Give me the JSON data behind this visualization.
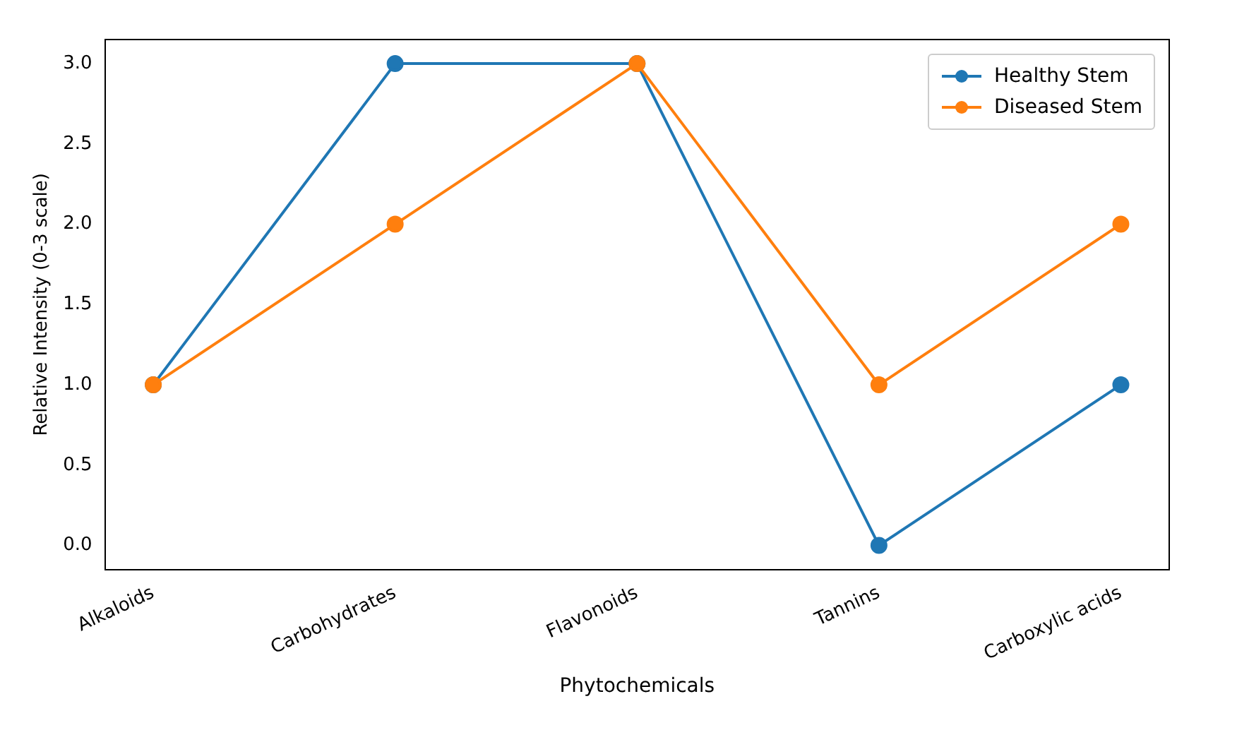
{
  "chart_data": {
    "type": "line",
    "xlabel": "Phytochemicals",
    "ylabel": "Relative Intensity (0-3 scale)",
    "categories": [
      "Alkaloids",
      "Carbohydrates",
      "Flavonoids",
      "Tannins",
      "Carboxylic acids"
    ],
    "series": [
      {
        "name": "Healthy Stem",
        "color": "#1f77b4",
        "values": [
          1,
          3,
          3,
          0,
          1
        ]
      },
      {
        "name": "Diseased Stem",
        "color": "#ff7f0e",
        "values": [
          1,
          2,
          3,
          1,
          2
        ]
      }
    ],
    "ylim": [
      -0.15,
      3.15
    ],
    "yticks": [
      {
        "value": 0,
        "label": "0.0"
      },
      {
        "value": 0.5,
        "label": "0.5"
      },
      {
        "value": 1,
        "label": "1.0"
      },
      {
        "value": 1.5,
        "label": "1.5"
      },
      {
        "value": 2,
        "label": "2.0"
      },
      {
        "value": 2.5,
        "label": "2.5"
      },
      {
        "value": 3,
        "label": "3.0"
      }
    ],
    "legend": "top right",
    "marker": "circle",
    "line_style": "solid",
    "grid": false
  }
}
